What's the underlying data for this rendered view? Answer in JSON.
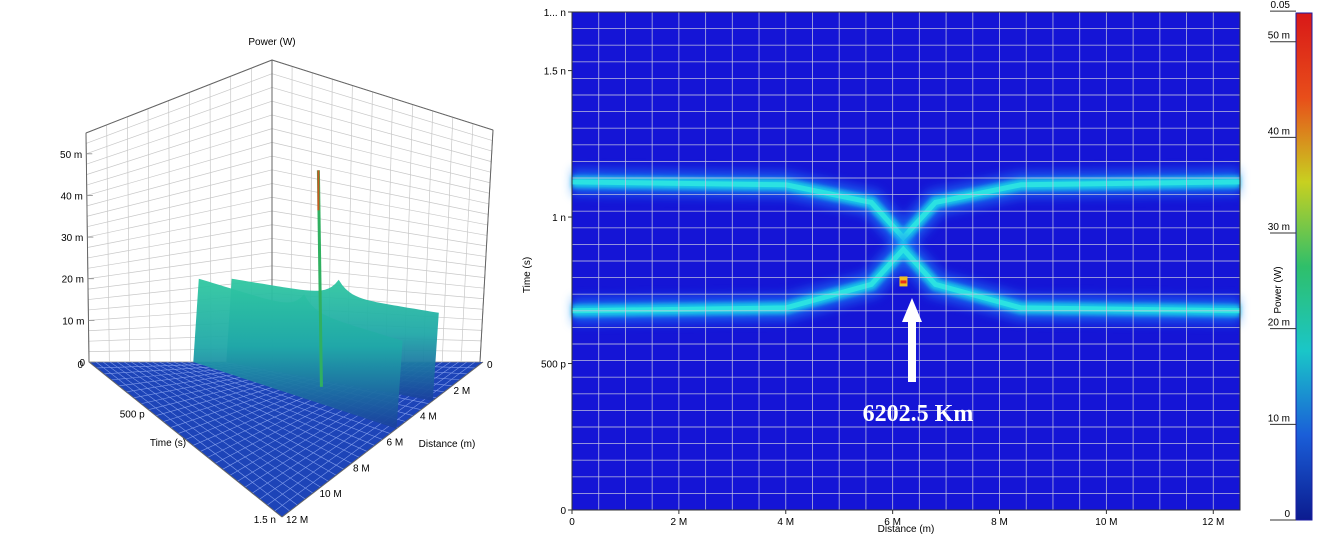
{
  "chart_data": [
    {
      "type": "surface3d",
      "zlabel": "Power (W)",
      "xlabel": "Distance (m)",
      "ylabel": "Time (s)",
      "z_ticks": [
        "0",
        "10 m",
        "20 m",
        "30 m",
        "40 m",
        "50 m"
      ],
      "x_ticks": [
        "0",
        "2 M",
        "4 M",
        "6 M",
        "8 M",
        "10 M",
        "12 M"
      ],
      "y_ticks": [
        "0",
        "500 p",
        "1.5 n"
      ],
      "xlim": [
        0,
        12000000
      ],
      "zlim": [
        0,
        0.055
      ],
      "series": [
        {
          "values": [
            [
              0,
              0.02
            ],
            [
              6200000,
              0.052
            ],
            [
              12000000,
              0.02
            ]
          ]
        },
        {
          "values": [
            [
              0,
              0.02
            ],
            [
              6200000,
              0.052
            ],
            [
              12000000,
              0.02
            ]
          ]
        }
      ],
      "colormap": [
        "#0b1b8f",
        "#1a5ed8",
        "#1ac6c8",
        "#2fbf6a",
        "#c8d020",
        "#e84e1a",
        "#d81818"
      ]
    },
    {
      "type": "heatmap",
      "xlabel": "Distance (m)",
      "ylabel": "Time (s)",
      "colorbar_label": "Power (W)",
      "x_ticks": [
        "0",
        "2 M",
        "4 M",
        "6 M",
        "8 M",
        "10 M",
        "12 M"
      ],
      "y_ticks": [
        "0",
        "500 p",
        "1 n",
        "1.5 n",
        "1... n"
      ],
      "colorbar_ticks": [
        "0",
        "10 m",
        "20 m",
        "30 m",
        "40 m",
        "50 m",
        "0.05"
      ],
      "xlim": [
        0,
        12500000
      ],
      "ylim": [
        0,
        1.7e-09
      ],
      "clim": [
        0,
        0.052
      ],
      "series": [
        {
          "values": [
            [
              0,
              1.12e-09
            ],
            [
              4000000,
              1.11e-09
            ],
            [
              5600000,
              1.05e-09
            ],
            [
              6200000,
              9.3e-10
            ],
            [
              6800000,
              1.05e-09
            ],
            [
              8400000,
              1.11e-09
            ],
            [
              12500000,
              1.12e-09
            ]
          ]
        },
        {
          "values": [
            [
              0,
              6.8e-10
            ],
            [
              4000000,
              6.9e-10
            ],
            [
              5600000,
              7.7e-10
            ],
            [
              6200000,
              8.9e-10
            ],
            [
              6800000,
              7.7e-10
            ],
            [
              8400000,
              6.9e-10
            ],
            [
              12500000,
              6.8e-10
            ]
          ]
        }
      ],
      "peak": {
        "x": 6202500,
        "y": 9.1e-10,
        "value": 0.052
      },
      "annotation": "6202.5 Km",
      "grid": true
    }
  ]
}
